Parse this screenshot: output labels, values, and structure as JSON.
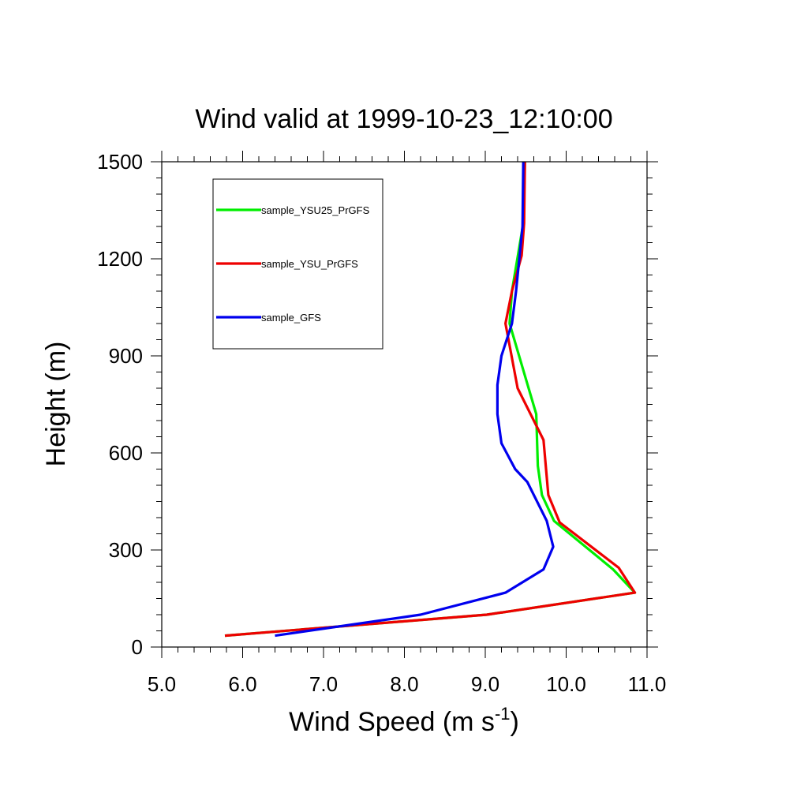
{
  "chart_data": {
    "type": "line",
    "title": "Wind valid at 1999-10-23_12:10:00",
    "xlabel": "Wind Speed (m s",
    "xlabel_sup": "-1",
    "xlabel_end": ")",
    "ylabel": "Height (m)",
    "xlim": [
      5.0,
      11.0
    ],
    "ylim": [
      0,
      1500
    ],
    "xticks": [
      "5.0",
      "6.0",
      "7.0",
      "8.0",
      "9.0",
      "10.0",
      "11.0"
    ],
    "yticks": [
      "0",
      "300",
      "600",
      "900",
      "1200",
      "1500"
    ],
    "grid": false,
    "legend_placement": "top-left",
    "series": [
      {
        "name": "sample_YSU25_PrGFS",
        "color": "#00ee00",
        "points": [
          [
            5.78,
            35
          ],
          [
            9.02,
            100
          ],
          [
            10.85,
            168
          ],
          [
            10.58,
            240
          ],
          [
            9.85,
            390
          ],
          [
            9.7,
            470
          ],
          [
            9.65,
            560
          ],
          [
            9.63,
            720
          ],
          [
            9.5,
            830
          ],
          [
            9.3,
            1000
          ],
          [
            9.33,
            1100
          ],
          [
            9.47,
            1310
          ],
          [
            9.49,
            1500
          ]
        ]
      },
      {
        "name": "sample_YSU_PrGFS",
        "color": "#ee0000",
        "points": [
          [
            5.78,
            35
          ],
          [
            9.02,
            100
          ],
          [
            10.85,
            168
          ],
          [
            10.65,
            245
          ],
          [
            9.92,
            385
          ],
          [
            9.78,
            470
          ],
          [
            9.72,
            640
          ],
          [
            9.4,
            800
          ],
          [
            9.25,
            1000
          ],
          [
            9.33,
            1100
          ],
          [
            9.45,
            1210
          ],
          [
            9.48,
            1310
          ],
          [
            9.49,
            1500
          ]
        ]
      },
      {
        "name": "sample_GFS",
        "color": "#0000ee",
        "points": [
          [
            6.4,
            35
          ],
          [
            8.2,
            100
          ],
          [
            9.25,
            168
          ],
          [
            9.72,
            240
          ],
          [
            9.84,
            310
          ],
          [
            9.76,
            390
          ],
          [
            9.52,
            510
          ],
          [
            9.37,
            550
          ],
          [
            9.2,
            630
          ],
          [
            9.15,
            720
          ],
          [
            9.15,
            810
          ],
          [
            9.2,
            900
          ],
          [
            9.33,
            1000
          ],
          [
            9.38,
            1100
          ],
          [
            9.46,
            1300
          ],
          [
            9.47,
            1500
          ]
        ]
      }
    ]
  }
}
